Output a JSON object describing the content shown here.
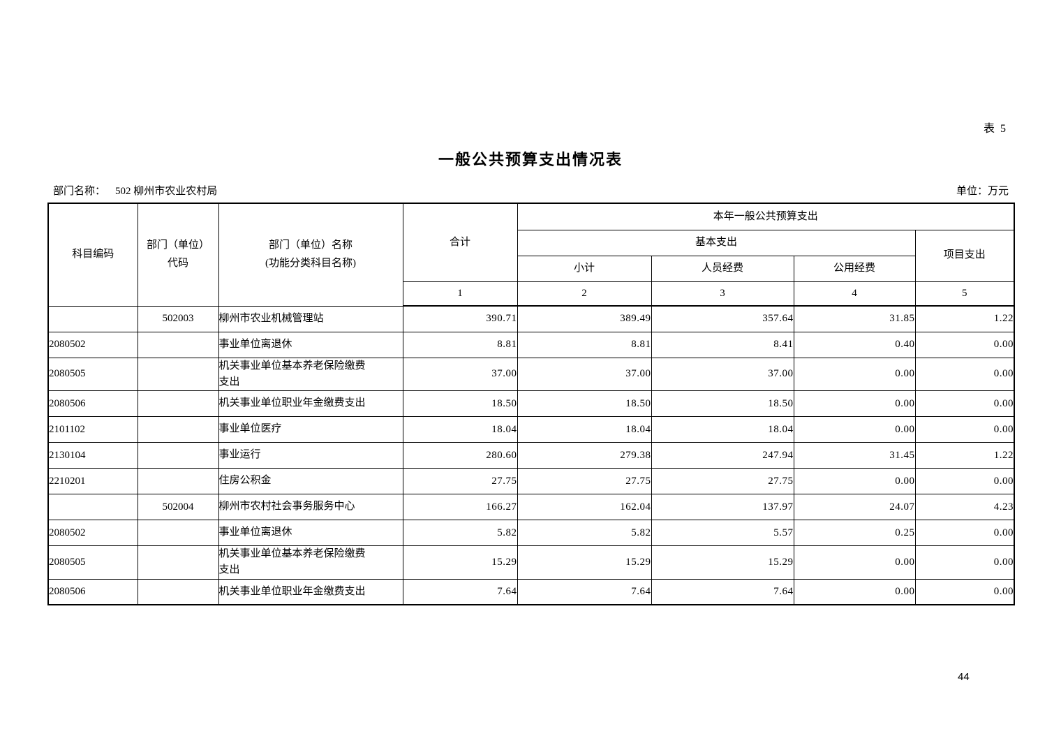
{
  "page": {
    "sheet_label": "表 5",
    "title": "一般公共预算支出情况表",
    "department_label": "部门名称：",
    "department_value": "502 柳州市农业农村局",
    "unit_label": "单位：万元",
    "page_number": "44"
  },
  "table": {
    "header": {
      "subject_code": "科目编码",
      "org_code": "部门（单位）\n代码",
      "org_name": "部门（单位）名称\n(功能分类科目名称)",
      "total": "合计",
      "current_year_group": "本年一般公共预算支出",
      "basic_group": "基本支出",
      "subtotal": "小计",
      "personnel": "人员经费",
      "public_funds": "公用经费",
      "project": "项目支出",
      "col_numbers": [
        "1",
        "2",
        "3",
        "4",
        "5"
      ]
    },
    "rows": [
      {
        "code": "",
        "org_code": "502003",
        "name": "柳州市农业机械管理站",
        "total": "390.71",
        "subtotal": "389.49",
        "personnel": "357.64",
        "public_funds": "31.85",
        "project": "1.22"
      },
      {
        "code": "2080502",
        "org_code": "",
        "name": "事业单位离退休",
        "total": "8.81",
        "subtotal": "8.81",
        "personnel": "8.41",
        "public_funds": "0.40",
        "project": "0.00"
      },
      {
        "code": "2080505",
        "org_code": "",
        "name": "机关事业单位基本养老保险缴费\n支出",
        "total": "37.00",
        "subtotal": "37.00",
        "personnel": "37.00",
        "public_funds": "0.00",
        "project": "0.00"
      },
      {
        "code": "2080506",
        "org_code": "",
        "name": "机关事业单位职业年金缴费支出",
        "total": "18.50",
        "subtotal": "18.50",
        "personnel": "18.50",
        "public_funds": "0.00",
        "project": "0.00"
      },
      {
        "code": "2101102",
        "org_code": "",
        "name": "事业单位医疗",
        "total": "18.04",
        "subtotal": "18.04",
        "personnel": "18.04",
        "public_funds": "0.00",
        "project": "0.00"
      },
      {
        "code": "2130104",
        "org_code": "",
        "name": "事业运行",
        "total": "280.60",
        "subtotal": "279.38",
        "personnel": "247.94",
        "public_funds": "31.45",
        "project": "1.22"
      },
      {
        "code": "2210201",
        "org_code": "",
        "name": "住房公积金",
        "total": "27.75",
        "subtotal": "27.75",
        "personnel": "27.75",
        "public_funds": "0.00",
        "project": "0.00"
      },
      {
        "code": "",
        "org_code": "502004",
        "name": "柳州市农村社会事务服务中心",
        "total": "166.27",
        "subtotal": "162.04",
        "personnel": "137.97",
        "public_funds": "24.07",
        "project": "4.23"
      },
      {
        "code": "2080502",
        "org_code": "",
        "name": "事业单位离退休",
        "total": "5.82",
        "subtotal": "5.82",
        "personnel": "5.57",
        "public_funds": "0.25",
        "project": "0.00"
      },
      {
        "code": "2080505",
        "org_code": "",
        "name": "机关事业单位基本养老保险缴费\n支出",
        "total": "15.29",
        "subtotal": "15.29",
        "personnel": "15.29",
        "public_funds": "0.00",
        "project": "0.00"
      },
      {
        "code": "2080506",
        "org_code": "",
        "name": "机关事业单位职业年金缴费支出",
        "total": "7.64",
        "subtotal": "7.64",
        "personnel": "7.64",
        "public_funds": "0.00",
        "project": "0.00"
      }
    ]
  }
}
